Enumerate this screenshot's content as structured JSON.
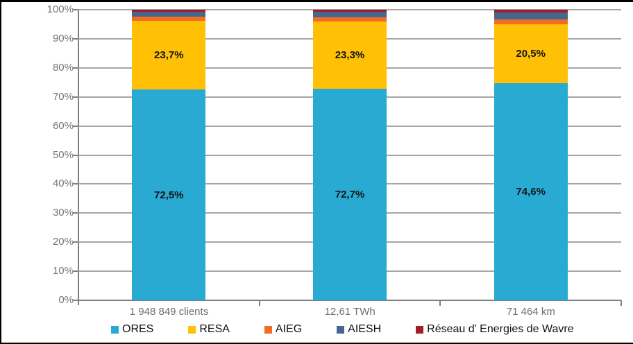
{
  "chart_data": {
    "type": "bar",
    "subtype": "stacked-100-percent",
    "title": "",
    "categories": [
      "1 948 849 clients",
      "12,61 TWh",
      "71 464 km"
    ],
    "series": [
      {
        "name": "ORES",
        "color": "#29aad3",
        "values": [
          72.5,
          72.7,
          74.6
        ],
        "data_labels": [
          "72,5%",
          "72,7%",
          "74,6%"
        ]
      },
      {
        "name": "RESA",
        "color": "#ffc006",
        "values": [
          23.7,
          23.3,
          20.5
        ],
        "data_labels": [
          "23,7%",
          "23,3%",
          "20,5%"
        ]
      },
      {
        "name": "AIEG",
        "color": "#f36c21",
        "values": [
          1.4,
          1.4,
          1.5
        ],
        "data_labels": [
          "",
          "",
          ""
        ]
      },
      {
        "name": "AIESH",
        "color": "#426890",
        "values": [
          1.6,
          1.9,
          2.4
        ],
        "data_labels": [
          "",
          "",
          ""
        ]
      },
      {
        "name": "Réseau d' Energies de Wavre",
        "color": "#a61c24",
        "values": [
          0.8,
          0.7,
          1.0
        ],
        "data_labels": [
          "",
          "",
          ""
        ]
      }
    ],
    "y_axis": {
      "min": 0,
      "max": 100,
      "step": 10,
      "tick_labels": [
        "0%",
        "10%",
        "20%",
        "30%",
        "40%",
        "50%",
        "60%",
        "70%",
        "80%",
        "90%",
        "100%"
      ]
    },
    "xlabel": "",
    "ylabel": "",
    "grid": true,
    "legend_position": "bottom"
  },
  "style_colors": {
    "gridline": "#a6a6a6",
    "axis": "#7f7f7f",
    "tick_label": "#757575",
    "data_label": "#141414",
    "frame": "#000000",
    "background": "#ffffff"
  }
}
